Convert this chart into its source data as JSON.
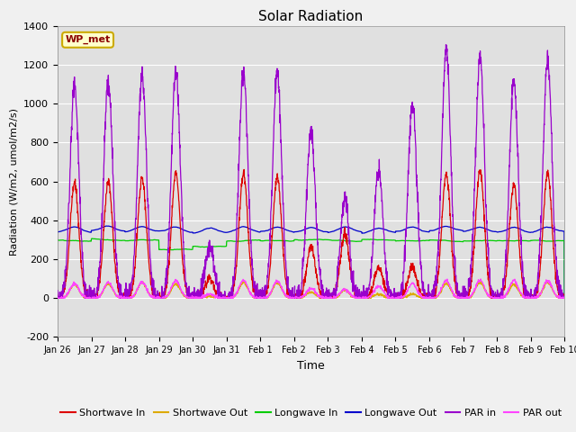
{
  "title": "Solar Radiation",
  "ylabel": "Radiation (W/m2, umol/m2/s)",
  "xlabel": "Time",
  "ylim": [
    -200,
    1400
  ],
  "yticks": [
    -200,
    0,
    200,
    400,
    600,
    800,
    1000,
    1200,
    1400
  ],
  "fig_bg_color": "#f0f0f0",
  "plot_bg_color": "#e0e0e0",
  "legend_label": "WP_met",
  "series_colors": {
    "shortwave_in": "#dd0000",
    "shortwave_out": "#ddaa00",
    "longwave_in": "#00cc00",
    "longwave_out": "#0000cc",
    "par_in": "#9900cc",
    "par_out": "#ff44ff"
  },
  "n_days": 15,
  "x_tick_labels": [
    "Jan 26",
    "Jan 27",
    "Jan 28",
    "Jan 29",
    "Jan 30",
    "Jan 31",
    "Feb 1",
    "Feb 2",
    "Feb 3",
    "Feb 4",
    "Feb 5",
    "Feb 6",
    "Feb 7",
    "Feb 8",
    "Feb 9",
    "Feb 10"
  ]
}
